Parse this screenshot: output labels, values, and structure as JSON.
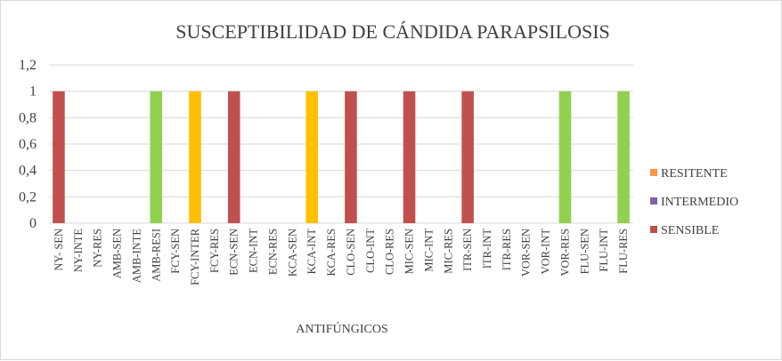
{
  "chart_data": {
    "type": "bar",
    "title": "SUSCEPTIBILIDAD DE CÁNDIDA PARAPSILOSIS",
    "xlabel": "ANTIFÚNGICOS",
    "ylabel": "",
    "ylim": [
      0,
      1.2
    ],
    "yticks": [
      "0",
      "0,2",
      "0,4",
      "0,6",
      "0,8",
      "1",
      "1,2"
    ],
    "grid": true,
    "legend_position": "right",
    "categories": [
      "NY- SEN",
      "NY-INTE",
      "NY-RES",
      "AMB-SEN",
      "AMB-INTE",
      "AMB-RESI",
      "FCY-SEN",
      "FCY-INTER",
      "FCY-RES",
      "ECN-SEN",
      "ECN-INT",
      "ECN-RES",
      "KCA-SEN",
      "KCA-INT",
      "KCA-RES",
      "CLO-SEN",
      "CLO-INT",
      "CLO-RES",
      "MIC-SEN",
      "MIC-INT",
      "MIC-RES",
      "ITR-SEN",
      "ITR-INT",
      "ITR-RES",
      "VOR-SEN",
      "VOR-INT",
      "VOR-RES",
      "FLU-SEN",
      "FLU-INT",
      "FLU-RES"
    ],
    "values": [
      1,
      0,
      0,
      0,
      0,
      1,
      0,
      1,
      0,
      1,
      0,
      0,
      0,
      1,
      0,
      1,
      0,
      0,
      1,
      0,
      0,
      1,
      0,
      0,
      0,
      0,
      1,
      0,
      0,
      1
    ],
    "bar_colors": [
      "#c0504d",
      "#c0504d",
      "#c0504d",
      "#c0504d",
      "#c0504d",
      "#92d050",
      "#c0504d",
      "#ffc000",
      "#c0504d",
      "#c0504d",
      "#c0504d",
      "#c0504d",
      "#c0504d",
      "#ffc000",
      "#c0504d",
      "#c0504d",
      "#c0504d",
      "#c0504d",
      "#c0504d",
      "#c0504d",
      "#c0504d",
      "#c0504d",
      "#c0504d",
      "#c0504d",
      "#c0504d",
      "#c0504d",
      "#92d050",
      "#c0504d",
      "#c0504d",
      "#92d050"
    ],
    "legend": [
      {
        "name": "RESITENTE",
        "color": "#f79646"
      },
      {
        "name": "INTERMEDIO",
        "color": "#8064a2"
      },
      {
        "name": "SENSIBLE",
        "color": "#c0504d"
      }
    ]
  }
}
